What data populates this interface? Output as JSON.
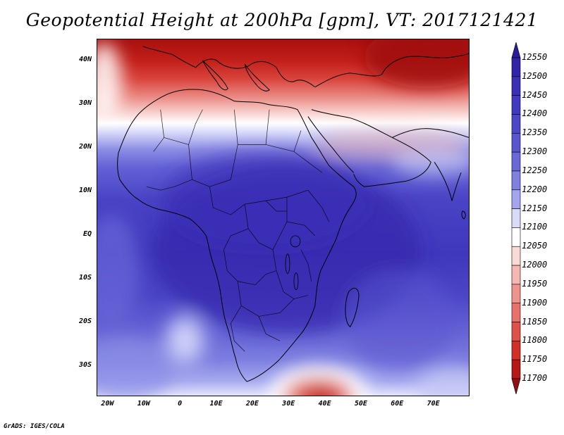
{
  "title": "Geopotential Height at 200hPa [gpm], VT: 2017121421",
  "credit": "GrADS: IGES/COLA",
  "map": {
    "lon_range": [
      -23,
      80
    ],
    "lat_range": [
      -37,
      45
    ],
    "lat_ticks": [
      "40N",
      "30N",
      "20N",
      "10N",
      "EQ",
      "10S",
      "20S",
      "30S"
    ],
    "lat_values": [
      40,
      30,
      20,
      10,
      0,
      -10,
      -20,
      -30
    ],
    "lon_ticks": [
      "20W",
      "10W",
      "0",
      "10E",
      "20E",
      "30E",
      "40E",
      "50E",
      "60E",
      "70E"
    ],
    "lon_values": [
      -20,
      -10,
      0,
      10,
      20,
      30,
      40,
      50,
      60,
      70
    ]
  },
  "colorbar": {
    "labels": [
      "12550",
      "12500",
      "12450",
      "12400",
      "12350",
      "12300",
      "12250",
      "12200",
      "12150",
      "12100",
      "12050",
      "12000",
      "11950",
      "11900",
      "11850",
      "11800",
      "11750",
      "11700"
    ],
    "colors": [
      "#2a1c9a",
      "#3124a8",
      "#3a2fb6",
      "#4239c2",
      "#4d46c8",
      "#5a55cf",
      "#6a68d8",
      "#7f80e2",
      "#a3a6ee",
      "#d9dbf9",
      "#ffffff",
      "#fbd9d7",
      "#f6b7b3",
      "#f0938f",
      "#e8716b",
      "#df5048",
      "#d22f26",
      "#b61717",
      "#8f0f12"
    ]
  },
  "colors": {
    "ocean_low": "#5b58cf",
    "deep_blue": "#3a2fb6",
    "warm": "#c9221c"
  }
}
